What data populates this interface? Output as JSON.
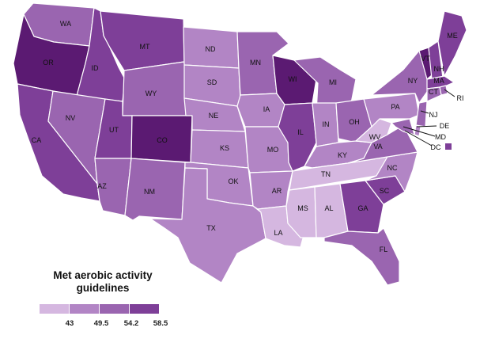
{
  "legend": {
    "title_line1": "Met aerobic activity",
    "title_line2": "guidelines",
    "ticks": [
      "43",
      "49.5",
      "54.2",
      "58.5"
    ],
    "colors": [
      "#d5b7e0",
      "#b285c5",
      "#9a65b0",
      "#7e3f98",
      "#5b1a72"
    ]
  },
  "dc_box_color": "#7e3f98",
  "states": [
    {
      "abbr": "WA",
      "color": "#9a65b0"
    },
    {
      "abbr": "OR",
      "color": "#5b1a72"
    },
    {
      "abbr": "CA",
      "color": "#7e3f98"
    },
    {
      "abbr": "ID",
      "color": "#7e3f98"
    },
    {
      "abbr": "NV",
      "color": "#9a65b0"
    },
    {
      "abbr": "MT",
      "color": "#7e3f98"
    },
    {
      "abbr": "WY",
      "color": "#9a65b0"
    },
    {
      "abbr": "UT",
      "color": "#7e3f98"
    },
    {
      "abbr": "CO",
      "color": "#5b1a72"
    },
    {
      "abbr": "AZ",
      "color": "#9a65b0"
    },
    {
      "abbr": "NM",
      "color": "#9a65b0"
    },
    {
      "abbr": "ND",
      "color": "#b285c5"
    },
    {
      "abbr": "SD",
      "color": "#b285c5"
    },
    {
      "abbr": "NE",
      "color": "#b285c5"
    },
    {
      "abbr": "KS",
      "color": "#b285c5"
    },
    {
      "abbr": "OK",
      "color": "#b285c5"
    },
    {
      "abbr": "TX",
      "color": "#b285c5"
    },
    {
      "abbr": "MN",
      "color": "#9a65b0"
    },
    {
      "abbr": "IA",
      "color": "#b285c5"
    },
    {
      "abbr": "MO",
      "color": "#b285c5"
    },
    {
      "abbr": "AR",
      "color": "#b285c5"
    },
    {
      "abbr": "LA",
      "color": "#d5b7e0"
    },
    {
      "abbr": "WI",
      "color": "#5b1a72"
    },
    {
      "abbr": "IL",
      "color": "#7e3f98"
    },
    {
      "abbr": "MI",
      "color": "#9a65b0"
    },
    {
      "abbr": "IN",
      "color": "#b285c5"
    },
    {
      "abbr": "OH",
      "color": "#9a65b0"
    },
    {
      "abbr": "KY",
      "color": "#b285c5"
    },
    {
      "abbr": "TN",
      "color": "#d5b7e0"
    },
    {
      "abbr": "MS",
      "color": "#d5b7e0"
    },
    {
      "abbr": "AL",
      "color": "#d5b7e0"
    },
    {
      "abbr": "GA",
      "color": "#7e3f98"
    },
    {
      "abbr": "FL",
      "color": "#9a65b0"
    },
    {
      "abbr": "SC",
      "color": "#7e3f98"
    },
    {
      "abbr": "NC",
      "color": "#b285c5"
    },
    {
      "abbr": "VA",
      "color": "#9a65b0"
    },
    {
      "abbr": "WV",
      "color": "#d5b7e0"
    },
    {
      "abbr": "PA",
      "color": "#b285c5"
    },
    {
      "abbr": "NY",
      "color": "#9a65b0"
    },
    {
      "abbr": "VT",
      "color": "#5b1a72"
    },
    {
      "abbr": "NH",
      "color": "#7e3f98"
    },
    {
      "abbr": "ME",
      "color": "#7e3f98"
    },
    {
      "abbr": "MA",
      "color": "#7e3f98"
    },
    {
      "abbr": "RI",
      "color": "#9a65b0"
    },
    {
      "abbr": "CT",
      "color": "#9a65b0"
    },
    {
      "abbr": "NJ",
      "color": "#9a65b0"
    },
    {
      "abbr": "DE",
      "color": "#b285c5"
    },
    {
      "abbr": "MD",
      "color": "#9a65b0"
    },
    {
      "abbr": "DC",
      "color": "#7e3f98"
    }
  ]
}
